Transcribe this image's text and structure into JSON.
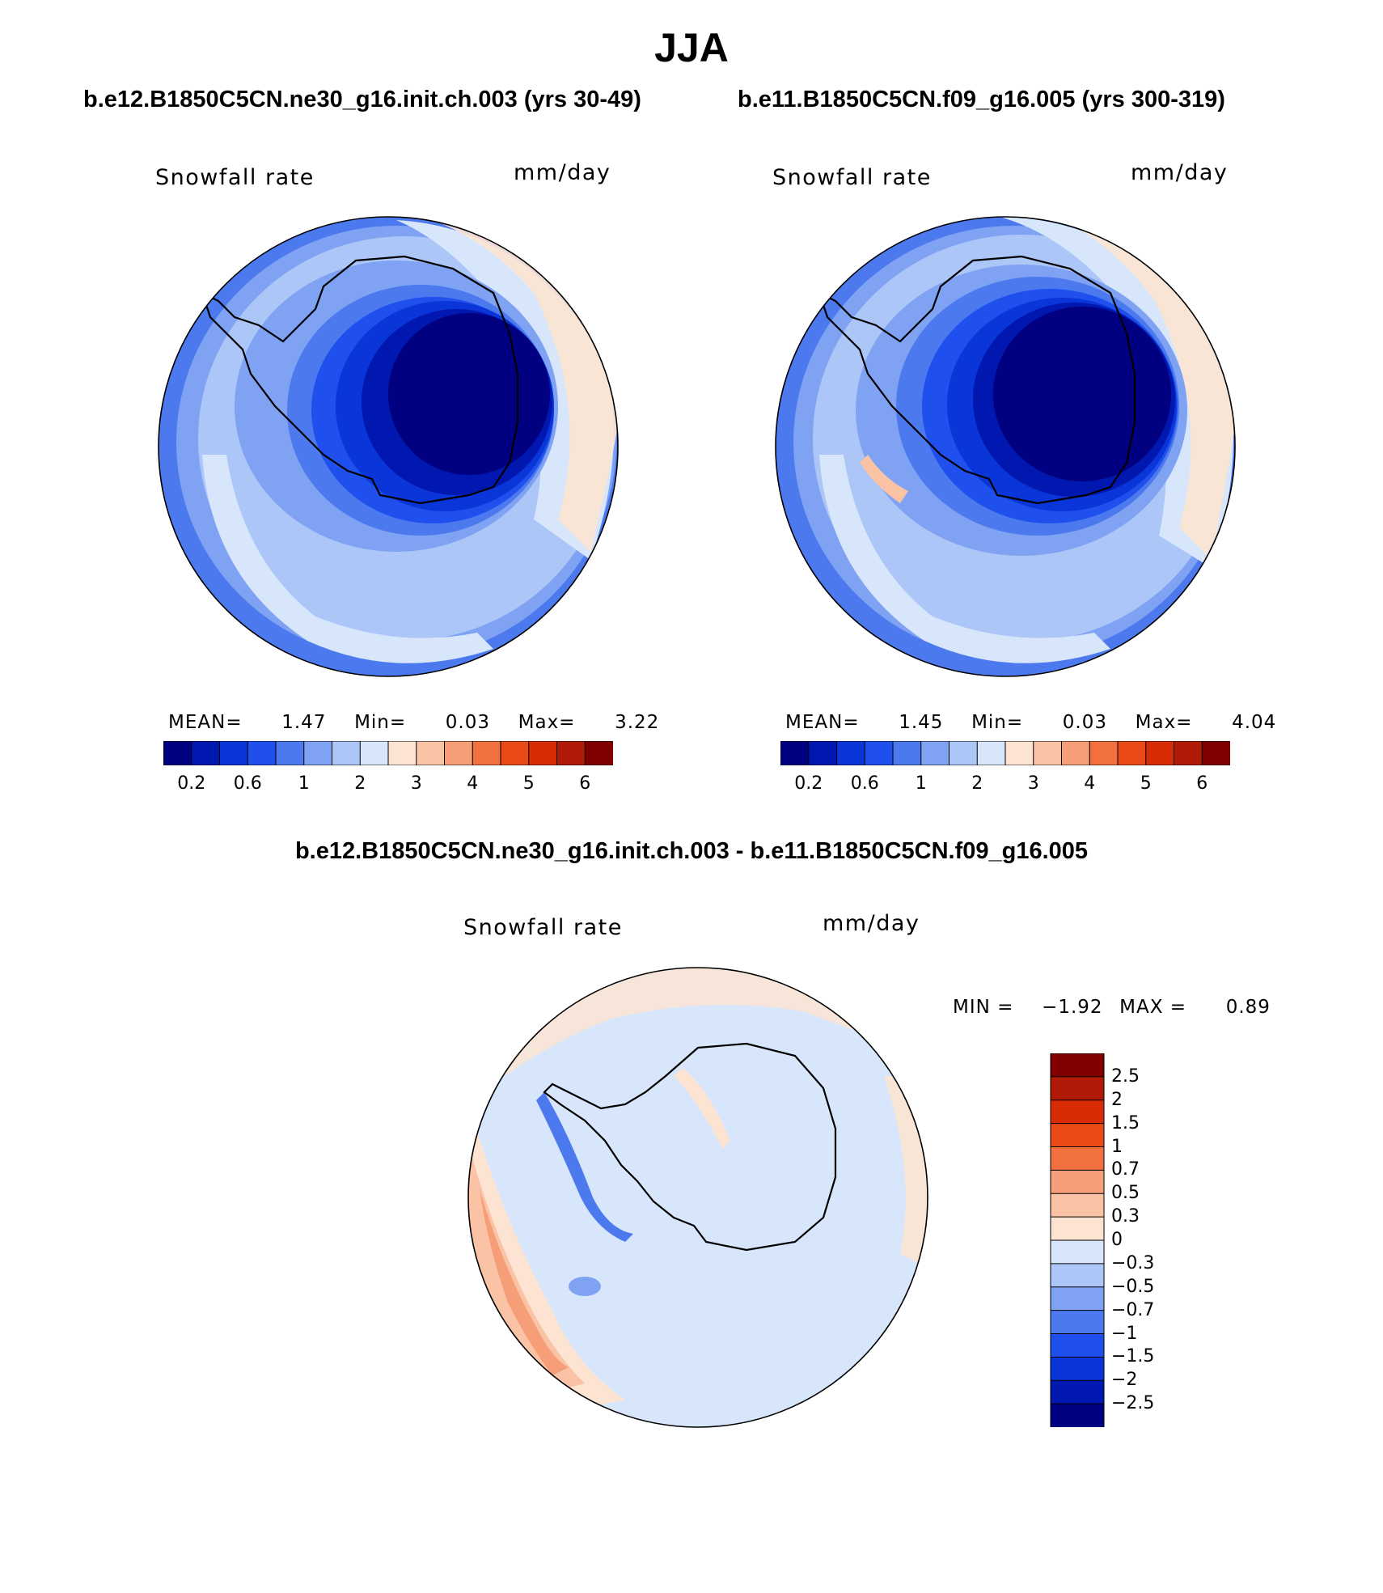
{
  "title": "JJA",
  "panels": [
    {
      "case": "b.e12.B1850C5CN.ne30_g16.init.ch.003 (yrs 30-49)",
      "variable": "Snowfall rate",
      "units": "mm/day",
      "stats": {
        "mean_label": "MEAN=",
        "mean": "1.47",
        "min_label": "Min=",
        "min": "0.03",
        "max_label": "Max=",
        "max": "3.22"
      },
      "colorbar_ticks": [
        "0.2",
        "0.6",
        "1",
        "2",
        "3",
        "4",
        "5",
        "6"
      ]
    },
    {
      "case": "b.e11.B1850C5CN.f09_g16.005 (yrs 300-319)",
      "variable": "Snowfall rate",
      "units": "mm/day",
      "stats": {
        "mean_label": "MEAN=",
        "mean": "1.45",
        "min_label": "Min=",
        "min": "0.03",
        "max_label": "Max=",
        "max": "4.04"
      },
      "colorbar_ticks": [
        "0.2",
        "0.6",
        "1",
        "2",
        "3",
        "4",
        "5",
        "6"
      ]
    }
  ],
  "diff": {
    "case": "b.e12.B1850C5CN.ne30_g16.init.ch.003 - b.e11.B1850C5CN.f09_g16.005",
    "variable": "Snowfall rate",
    "units": "mm/day",
    "stats": {
      "min_label": "MIN =",
      "min": "−1.92",
      "max_label": "MAX =",
      "max": "0.89"
    },
    "colorbar_ticks": [
      "2.5",
      "2",
      "1.5",
      "1",
      "0.7",
      "0.5",
      "0.3",
      "0",
      "−0.3",
      "−0.5",
      "−0.7",
      "−1",
      "−1.5",
      "−2",
      "−2.5"
    ]
  },
  "colors": {
    "abs_scale": [
      "#000080",
      "#0018b0",
      "#0a35d8",
      "#1f50ee",
      "#4c7aee",
      "#7fa2f2",
      "#adc6f8",
      "#d8e6fc",
      "#fde4d2",
      "#fbc3a6",
      "#f59e78",
      "#f2703e",
      "#ea4a16",
      "#d82c06",
      "#b11a06",
      "#800000"
    ],
    "diff_scale": [
      "#000080",
      "#0018b0",
      "#0a35d8",
      "#1f50ee",
      "#4c7aee",
      "#7fa2f2",
      "#adc6f8",
      "#d8e6fc",
      "#fde4d2",
      "#fbc3a6",
      "#f59e78",
      "#f2703e",
      "#ea4a16",
      "#d82c06",
      "#b11a06",
      "#800000"
    ],
    "coast": "#000000"
  }
}
